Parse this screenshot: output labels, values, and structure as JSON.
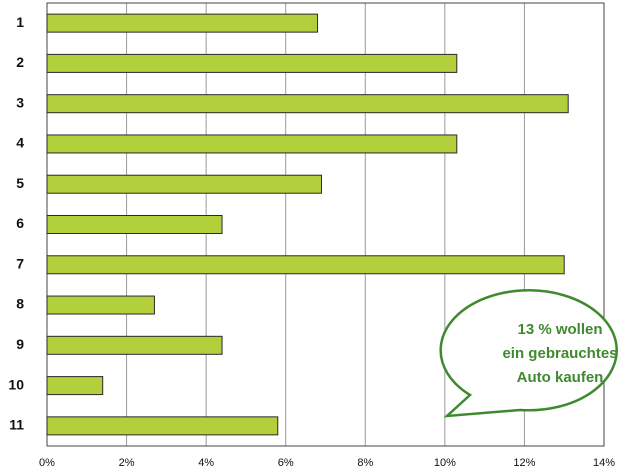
{
  "chart_data": {
    "type": "bar",
    "orientation": "horizontal",
    "categories": [
      "1",
      "2",
      "3",
      "4",
      "5",
      "6",
      "7",
      "8",
      "9",
      "10",
      "11"
    ],
    "values": [
      6.8,
      10.3,
      13.1,
      10.3,
      6.9,
      4.4,
      13.0,
      2.7,
      4.4,
      1.4,
      5.8
    ],
    "color": "#b3cf3b",
    "xlim": [
      0,
      14
    ],
    "xticks": [
      {
        "value": 0,
        "label": "0%"
      },
      {
        "value": 2,
        "label": "2%"
      },
      {
        "value": 4,
        "label": "4%"
      },
      {
        "value": 6,
        "label": "6%"
      },
      {
        "value": 8,
        "label": "8%"
      },
      {
        "value": 10,
        "label": "10%"
      },
      {
        "value": 12,
        "label": "12%"
      },
      {
        "value": 14,
        "label": "14%"
      }
    ],
    "grid": true,
    "annotation": [
      "13 % wollen",
      "ein gebrauchtes",
      "Auto kaufen"
    ]
  }
}
